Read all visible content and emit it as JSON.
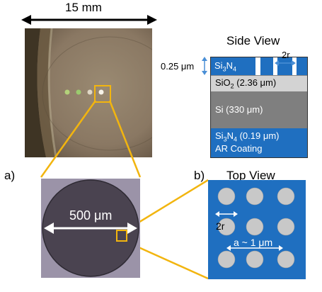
{
  "top_photo": {
    "scale_label": "15 mm"
  },
  "side_view": {
    "title": "Side View",
    "layers": {
      "si3n4_top": {
        "base": "Si",
        "sub1": "3",
        "mid": "N",
        "sub2": "4",
        "thickness": "0.25 μm",
        "color": "#1f6fc0"
      },
      "sio2": {
        "base": "SiO",
        "sub": "2",
        "rest": " (2.36 μm)",
        "color": "#d3d3d3"
      },
      "si": {
        "text": "Si (330 μm)",
        "color": "#7f7f7f"
      },
      "si3n4_bottom": {
        "base": "Si",
        "sub1": "3",
        "mid": "N",
        "sub2": "4",
        "rest": " (0.19 μm)",
        "line2": "AR Coating",
        "color": "#1f6fc0"
      }
    },
    "hole_label": "2r"
  },
  "panel_a": {
    "tag": "a)",
    "scale_label": "500 μm"
  },
  "panel_b": {
    "tag": "b)",
    "title": "Top View",
    "diameter_label": "2r",
    "pitch_label": "a ~ 1 μm",
    "color": "#1f6fc0"
  },
  "accent": "#f2b50f"
}
